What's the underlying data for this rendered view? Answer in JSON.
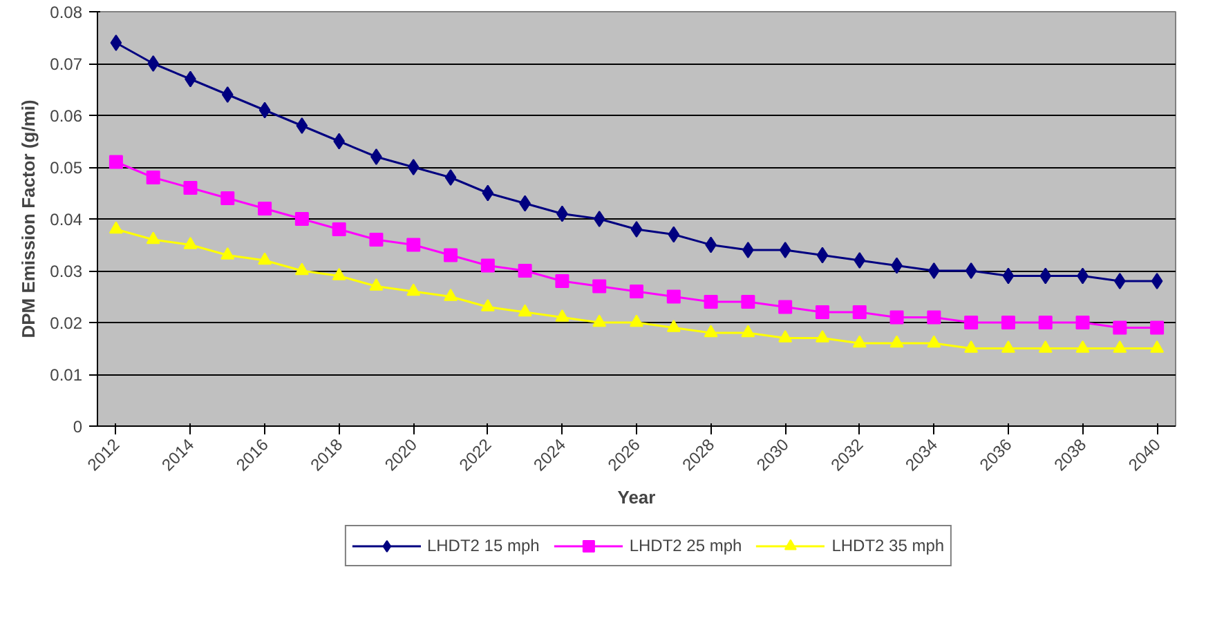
{
  "chart_data": {
    "type": "line",
    "xlabel": "Year",
    "ylabel": "DPM Emission Factor (g/mi)",
    "x": [
      2012,
      2013,
      2014,
      2015,
      2016,
      2017,
      2018,
      2019,
      2020,
      2021,
      2022,
      2023,
      2024,
      2025,
      2026,
      2027,
      2028,
      2029,
      2030,
      2031,
      2032,
      2033,
      2034,
      2035,
      2036,
      2037,
      2038,
      2039,
      2040
    ],
    "xlim": [
      2011.5,
      2040.5
    ],
    "xticks": [
      2012,
      2014,
      2016,
      2018,
      2020,
      2022,
      2024,
      2026,
      2028,
      2030,
      2032,
      2034,
      2036,
      2038,
      2040
    ],
    "ylim": [
      0,
      0.08
    ],
    "yticks": [
      0,
      0.01,
      0.02,
      0.03,
      0.04,
      0.05,
      0.06,
      0.07,
      0.08
    ],
    "grid": "y",
    "legend": "bottom",
    "line_style": "solid",
    "series": [
      {
        "name": "LHDT2 15 mph",
        "color": "#000080",
        "marker": "diamond",
        "values": [
          0.074,
          0.07,
          0.067,
          0.064,
          0.061,
          0.058,
          0.055,
          0.052,
          0.05,
          0.048,
          0.045,
          0.043,
          0.041,
          0.04,
          0.038,
          0.037,
          0.035,
          0.034,
          0.034,
          0.033,
          0.032,
          0.031,
          0.03,
          0.03,
          0.029,
          0.029,
          0.029,
          0.028,
          0.028
        ]
      },
      {
        "name": "LHDT2 25 mph",
        "color": "#ff00ff",
        "marker": "square",
        "values": [
          0.051,
          0.048,
          0.046,
          0.044,
          0.042,
          0.04,
          0.038,
          0.036,
          0.035,
          0.033,
          0.031,
          0.03,
          0.028,
          0.027,
          0.026,
          0.025,
          0.024,
          0.024,
          0.023,
          0.022,
          0.022,
          0.021,
          0.021,
          0.02,
          0.02,
          0.02,
          0.02,
          0.019,
          0.019
        ]
      },
      {
        "name": "LHDT2 35 mph",
        "color": "#ffff00",
        "marker": "triangle",
        "values": [
          0.038,
          0.036,
          0.035,
          0.033,
          0.032,
          0.03,
          0.029,
          0.027,
          0.026,
          0.025,
          0.023,
          0.022,
          0.021,
          0.02,
          0.02,
          0.019,
          0.018,
          0.018,
          0.017,
          0.017,
          0.016,
          0.016,
          0.016,
          0.015,
          0.015,
          0.015,
          0.015,
          0.015,
          0.015
        ]
      }
    ]
  }
}
